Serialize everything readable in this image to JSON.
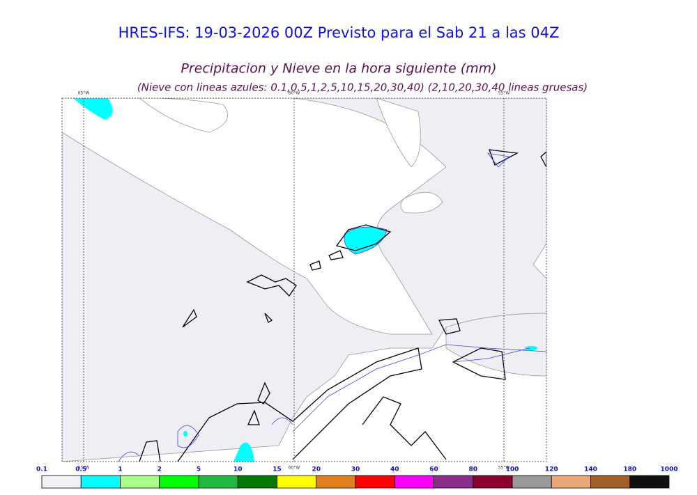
{
  "header": {
    "title": "HRES-IFS: 19-03-2026 00Z Previsto para el Sab 21 a las 04Z",
    "subtitle": "Precipitacion y Nieve en la hora siguiente (mm)",
    "note": "(Nieve con lineas azules: 0.1,0.5,1,2,5,10,15,20,30,40)  (2,10,20,30,40 lineas gruesas)"
  },
  "map": {
    "meridians_top": [
      "65°W",
      "60°W",
      "55°W"
    ],
    "meridians_bottom": [
      "65°W",
      "60°W",
      "55°W"
    ]
  },
  "colorbar": {
    "labels": [
      "0.1",
      "0.5",
      "1",
      "2",
      "5",
      "10",
      "15",
      "20",
      "30",
      "40",
      "60",
      "80",
      "100",
      "120",
      "140",
      "180",
      "1000"
    ],
    "colors": [
      "#f0f0f5",
      "#00ffff",
      "#a8ff8c",
      "#00ff00",
      "#20b840",
      "#007800",
      "#ffff00",
      "#e08020",
      "#ff0000",
      "#ff00ff",
      "#8a2c8a",
      "#8c0030",
      "#999999",
      "#e8a878",
      "#a0602c",
      "#101010"
    ]
  }
}
